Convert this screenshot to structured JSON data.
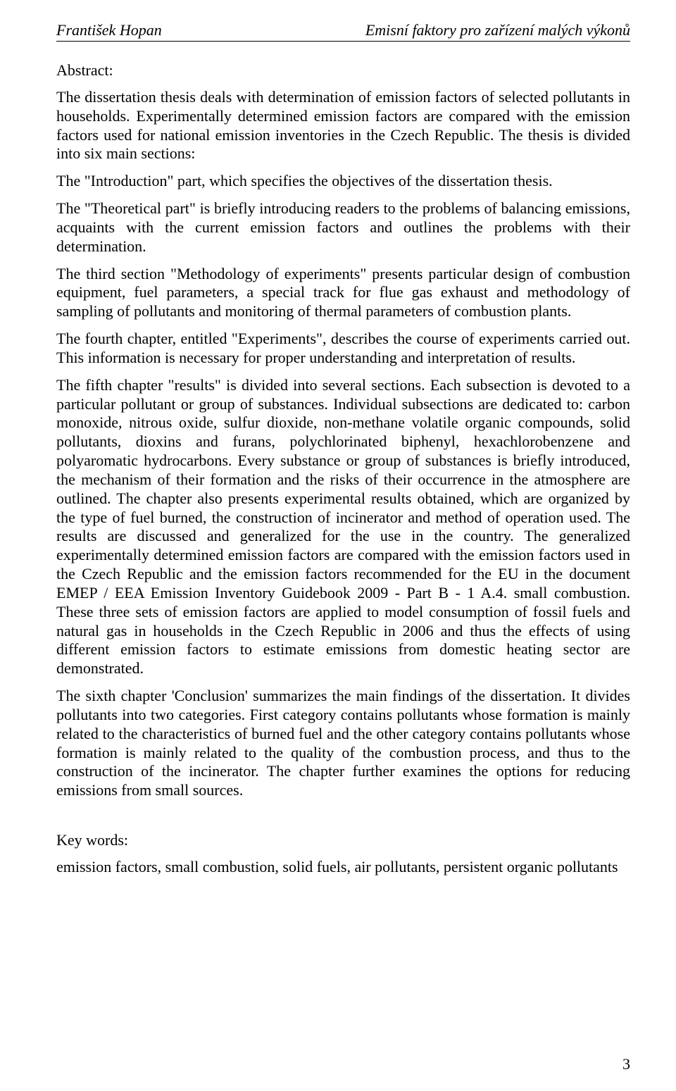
{
  "header": {
    "left": "František Hopan",
    "right": "Emisní faktory pro zařízení malých výkonů"
  },
  "abstract_label": "Abstract:",
  "paragraphs": [
    "The dissertation thesis deals with determination of emission factors of selected pollutants in households. Experimentally determined emission factors are compared with the emission factors used for national emission inventories in the Czech Republic. The thesis is divided into six main sections:",
    "The \"Introduction\" part, which specifies the objectives of  the dissertation thesis.",
    "The \"Theoretical part\" is briefly introducing readers to the problems of balancing emissions, acquaints with the current emission factors and outlines the problems with their determination.",
    "The third section \"Methodology of experiments\" presents particular design of combustion equipment, fuel parameters, a special track for flue gas exhaust and methodology of sampling of pollutants and monitoring of thermal parameters of combustion plants.",
    "The fourth chapter, entitled \"Experiments\", describes the course of experiments carried out. This information is necessary for proper understanding and interpretation of results.",
    "The fifth chapter \"results\" is divided into several sections. Each subsection is devoted to a particular pollutant or group of substances. Individual subsections are dedicated to: carbon monoxide, nitrous oxide, sulfur dioxide, non-methane volatile organic compounds, solid pollutants, dioxins and furans, polychlorinated biphenyl, hexachlorobenzene and polyaromatic hydrocarbons. Every substance or group of substances is briefly introduced, the mechanism of their formation and the risks of their occurrence in the atmosphere are outlined. The chapter also presents experimental results obtained, which are organized by the type of fuel burned, the construction of incinerator and method of operation used. The results are discussed and generalized for the use in the country. The generalized experimentally determined emission factors are compared with the emission factors used in the Czech Republic and the emission factors recommended for the EU in the document EMEP / EEA Emission Inventory Guidebook 2009 - Part B - 1 A.4. small combustion. These three sets of emission factors are applied to model consumption of fossil fuels and natural gas in households in the Czech Republic in 2006 and thus the effects of using different emission factors to estimate emissions from domestic heating sector are demonstrated.",
    "The sixth chapter 'Conclusion' summarizes the main findings of the dissertation. It divides pollutants into two categories. First category contains pollutants whose formation is mainly related to the characteristics of burned fuel and the other category contains pollutants whose formation is mainly related to the quality of the combustion process, and thus to the construction of the incinerator. The chapter further examines the options for reducing emissions from small sources."
  ],
  "keywords_label": "Key words:",
  "keywords_text": "emission factors, small combustion, solid fuels, air pollutants, persistent organic pollutants",
  "page_number": "3"
}
